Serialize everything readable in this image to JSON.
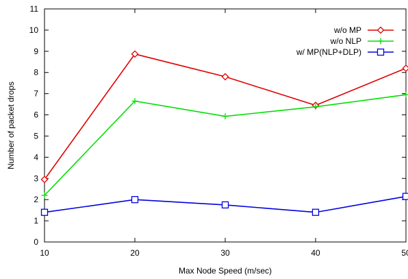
{
  "chart_data": {
    "type": "line",
    "title": "",
    "xlabel": "Max Node Speed (m/sec)",
    "ylabel": "Number of packet drops",
    "x": [
      10,
      20,
      30,
      40,
      50
    ],
    "xlim": [
      10,
      50
    ],
    "ylim": [
      0,
      11
    ],
    "xticks": [
      "10",
      "20",
      "30",
      "40",
      "50"
    ],
    "yticks": [
      "0",
      "1",
      "2",
      "3",
      "4",
      "5",
      "6",
      "7",
      "8",
      "9",
      "10",
      "11"
    ],
    "grid": false,
    "legend_position": "top-right",
    "series": [
      {
        "name": "w/o MP",
        "values": [
          2.95,
          8.87,
          7.8,
          6.45,
          8.2
        ],
        "color": "#e00000",
        "marker": "diamond"
      },
      {
        "name": "w/o NLP",
        "values": [
          2.2,
          6.65,
          5.93,
          6.38,
          6.95
        ],
        "color": "#00e000",
        "marker": "plus"
      },
      {
        "name": "w/ MP(NLP+DLP)",
        "values": [
          1.4,
          2.0,
          1.75,
          1.4,
          2.15
        ],
        "color": "#0000e0",
        "marker": "square"
      }
    ]
  }
}
